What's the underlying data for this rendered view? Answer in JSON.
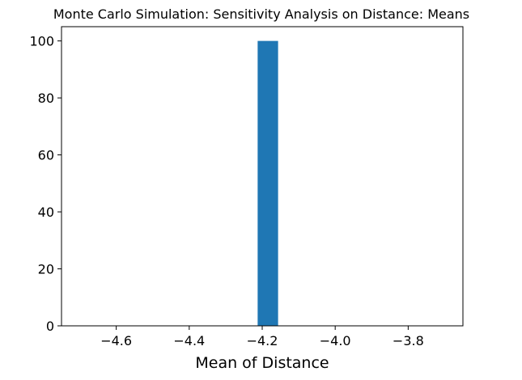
{
  "chart_data": {
    "type": "bar",
    "title": "Monte Carlo Simulation: Sensitivity Analysis on Distance: Means",
    "xlabel": "Mean of Distance",
    "ylabel": "",
    "xlim": [
      -4.75,
      -3.65
    ],
    "ylim": [
      0,
      105
    ],
    "x_ticks": [
      -4.6,
      -4.4,
      -4.2,
      -4.0,
      -3.8
    ],
    "x_tick_labels": [
      "−4.6",
      "−4.4",
      "−4.2",
      "−4.0",
      "−3.8"
    ],
    "y_ticks": [
      0,
      20,
      40,
      60,
      80,
      100
    ],
    "y_tick_labels": [
      "0",
      "20",
      "40",
      "60",
      "80",
      "100"
    ],
    "bars": [
      {
        "x_start": -4.2125,
        "x_end": -4.1565,
        "value": 100
      }
    ],
    "bar_color": "#1f77b4",
    "grid": false,
    "legend": "none"
  }
}
